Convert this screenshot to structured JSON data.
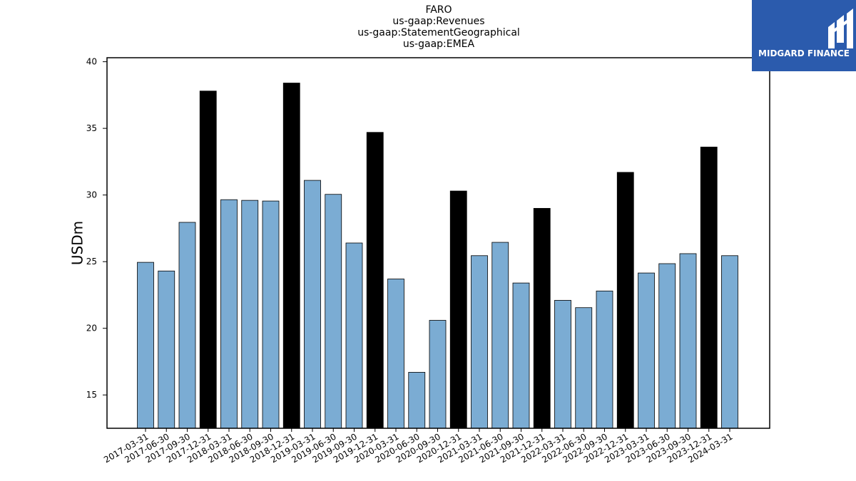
{
  "chart_data": {
    "type": "bar",
    "title_lines": [
      "FARO",
      "us-gaap:Revenues",
      "us-gaap:StatementGeographical",
      "us-gaap:EMEA"
    ],
    "xlabel": "",
    "ylabel": "USDm",
    "ylim": [
      12.5,
      40.3
    ],
    "yticks": [
      15,
      20,
      25,
      30,
      35,
      40
    ],
    "grid": false,
    "categories": [
      "2017-03-31",
      "2017-06-30",
      "2017-09-30",
      "2017-12-31",
      "2018-03-31",
      "2018-06-30",
      "2018-09-30",
      "2018-12-31",
      "2019-03-31",
      "2019-06-30",
      "2019-09-30",
      "2019-12-31",
      "2020-03-31",
      "2020-06-30",
      "2020-09-30",
      "2020-12-31",
      "2021-03-31",
      "2021-06-30",
      "2021-09-30",
      "2021-12-31",
      "2022-03-31",
      "2022-06-30",
      "2022-09-30",
      "2022-12-31",
      "2023-03-31",
      "2023-06-30",
      "2023-09-30",
      "2023-12-31",
      "2024-03-31"
    ],
    "values": [
      24.95,
      24.3,
      27.95,
      37.8,
      29.65,
      29.6,
      29.55,
      38.4,
      31.1,
      30.05,
      26.4,
      34.7,
      23.7,
      16.7,
      20.6,
      30.3,
      25.45,
      26.45,
      23.4,
      29.0,
      22.1,
      21.55,
      22.8,
      31.7,
      24.15,
      24.85,
      25.6,
      33.6,
      25.45
    ],
    "colors": {
      "quarter": "#7bacd3",
      "year_end": "#000000",
      "edge": "#000000"
    },
    "year_end_suffix": "12-31"
  },
  "logo": {
    "text": "MIDGARD FINANCE",
    "background": "#2b5bad"
  }
}
